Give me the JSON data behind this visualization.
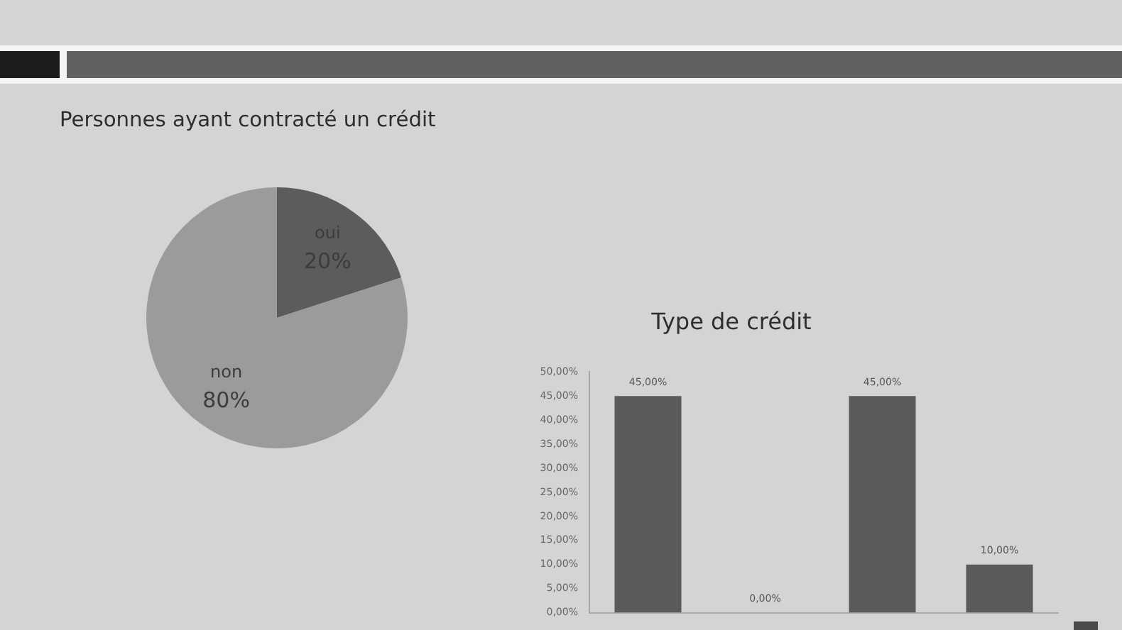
{
  "chart_data": [
    {
      "type": "pie",
      "title": "Personnes ayant contracté un crédit",
      "categories": [
        "oui",
        "non"
      ],
      "values": [
        20,
        80
      ],
      "colors": [
        "#5c5c5c",
        "#9b9b9b"
      ],
      "value_labels": [
        "20%",
        "80%"
      ]
    },
    {
      "type": "bar",
      "title": "Type de crédit",
      "categories": [
        null,
        null,
        null,
        null
      ],
      "values": [
        45,
        0,
        45,
        10
      ],
      "color": "#5a5a5a",
      "value_labels": [
        "45,00%",
        "0,00%",
        "45,00%",
        "10,00%"
      ],
      "ylim": [
        0,
        50
      ],
      "yticks": [
        {
          "value": 0,
          "label": "0,00%"
        },
        {
          "value": 5,
          "label": "5,00%"
        },
        {
          "value": 10,
          "label": "10,00%"
        },
        {
          "value": 15,
          "label": "15,00%"
        },
        {
          "value": 20,
          "label": "20,00%"
        },
        {
          "value": 25,
          "label": "25,00%"
        },
        {
          "value": 30,
          "label": "30,00%"
        },
        {
          "value": 35,
          "label": "35,00%"
        },
        {
          "value": 40,
          "label": "40,00%"
        },
        {
          "value": 45,
          "label": "45,00%"
        },
        {
          "value": 50,
          "label": "50,00%"
        }
      ],
      "grid": false
    }
  ]
}
